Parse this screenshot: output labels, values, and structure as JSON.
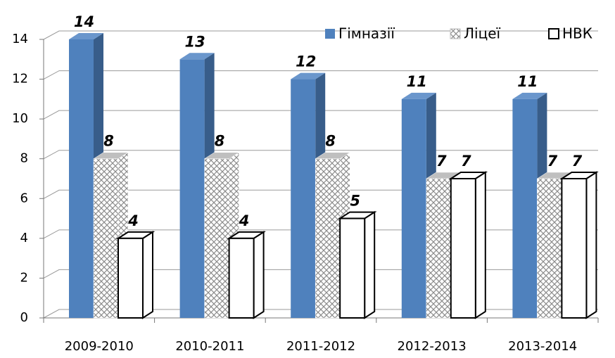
{
  "chart_data": {
    "type": "bar3d",
    "categories": [
      "2009-2010",
      "2010-2011",
      "2011-2012",
      "2012-2013",
      "2013-2014"
    ],
    "series": [
      {
        "name": "Гімназії",
        "color": "#4f81bd",
        "values": [
          14,
          13,
          12,
          11,
          11
        ]
      },
      {
        "name": "Ліцеї",
        "color": "#a6a6a6",
        "pattern": "crosshatch",
        "values": [
          8,
          8,
          8,
          7,
          7
        ]
      },
      {
        "name": "НВК",
        "color": "#ffffff",
        "values": [
          4,
          4,
          5,
          7,
          7
        ]
      }
    ],
    "ylim": [
      0,
      14
    ],
    "yticks": [
      0,
      2,
      4,
      6,
      8,
      10,
      12,
      14
    ],
    "grid": true,
    "legend": "top-right"
  }
}
